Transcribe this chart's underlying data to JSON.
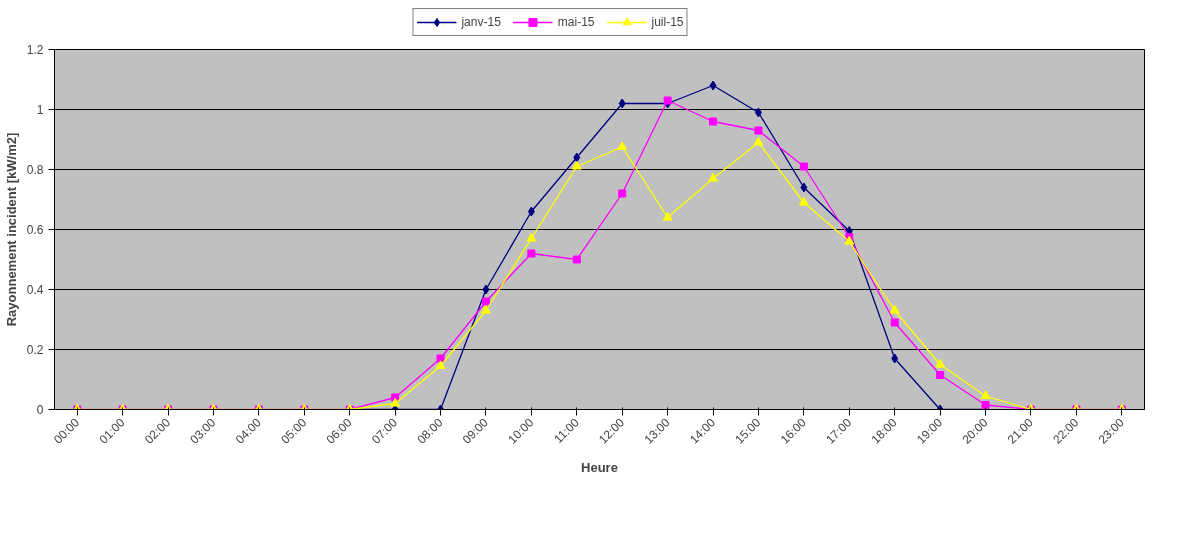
{
  "chart_data": {
    "type": "line",
    "xlabel": "Heure",
    "ylabel": "Rayonnement incident [kW/m2]",
    "categories": [
      "00:00",
      "01:00",
      "02:00",
      "03:00",
      "04:00",
      "05:00",
      "06:00",
      "07:00",
      "08:00",
      "09:00",
      "10:00",
      "11:00",
      "12:00",
      "13:00",
      "14:00",
      "15:00",
      "16:00",
      "17:00",
      "18:00",
      "19:00",
      "20:00",
      "21:00",
      "22:00",
      "23:00"
    ],
    "series": [
      {
        "name": "janv-15",
        "color": "#000080",
        "marker": "diamond",
        "values": [
          null,
          null,
          null,
          null,
          null,
          null,
          0,
          0,
          0,
          0.4,
          0.66,
          0.84,
          1.02,
          1.02,
          1.08,
          0.99,
          0.74,
          0.595,
          0.17,
          0,
          0,
          null,
          null,
          null
        ]
      },
      {
        "name": "mai-15",
        "color": "#ff00ff",
        "marker": "square",
        "values": [
          0,
          0,
          0,
          0,
          0,
          0,
          0,
          0.04,
          0.17,
          0.36,
          0.52,
          0.5,
          0.72,
          1.03,
          0.96,
          0.93,
          0.81,
          0.575,
          0.29,
          0.115,
          0.015,
          0,
          0,
          0
        ]
      },
      {
        "name": "juil-15",
        "color": "#ffff00",
        "marker": "triangle",
        "values": [
          0,
          0,
          0,
          0,
          0,
          0,
          0,
          0.02,
          0.145,
          0.33,
          0.57,
          0.81,
          0.875,
          0.64,
          0.77,
          0.89,
          0.69,
          0.56,
          0.33,
          0.15,
          0.045,
          0,
          0,
          0
        ]
      }
    ],
    "ylim": [
      0,
      1.2
    ],
    "yticks": [
      0,
      0.2,
      0.4,
      0.6,
      0.8,
      1,
      1.2
    ],
    "grid": "y",
    "legend": "top"
  }
}
